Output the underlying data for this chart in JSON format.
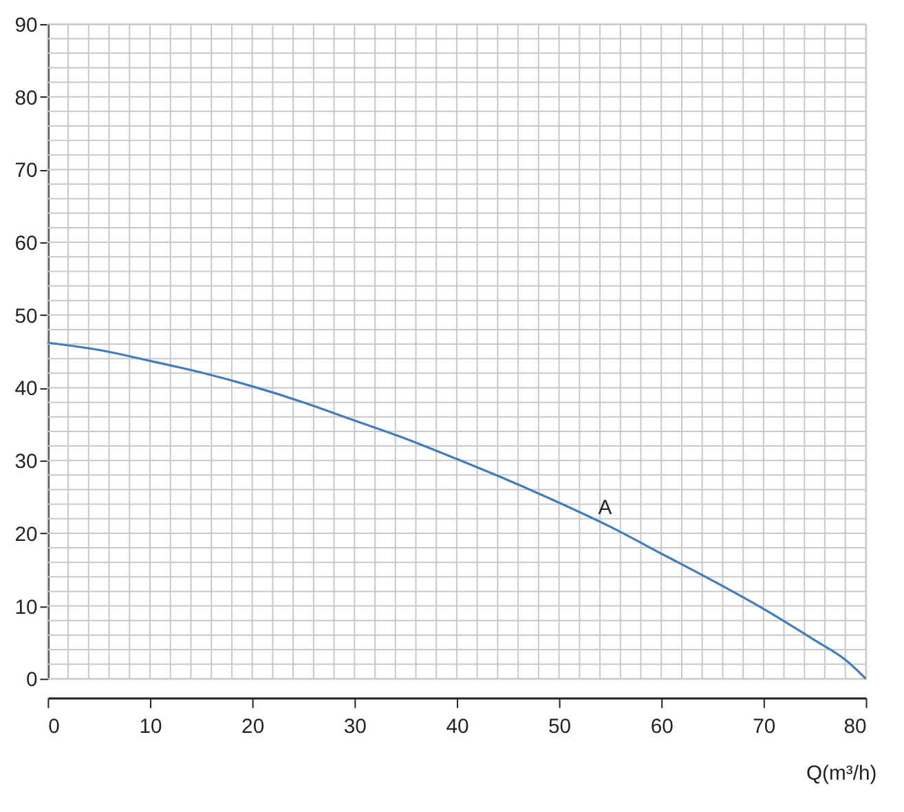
{
  "chart_data": {
    "type": "line",
    "xlabel": "Q(m³/h)",
    "x": [
      0,
      5,
      10,
      15,
      20,
      25,
      30,
      35,
      40,
      45,
      50,
      55,
      60,
      65,
      70,
      75,
      78,
      80
    ],
    "series": [
      {
        "color": "#3f7cc0",
        "values": [
          46.2,
          45.2,
          43.7,
          42.1,
          40.2,
          38.0,
          35.5,
          33.0,
          30.2,
          27.3,
          24.2,
          20.9,
          17.2,
          13.5,
          9.6,
          5.3,
          2.6,
          0
        ]
      }
    ],
    "annotations": [
      {
        "text": "A",
        "x": 54.5,
        "y": 21.3
      }
    ],
    "xlim": [
      0,
      80
    ],
    "ylim": [
      0,
      90
    ],
    "xticks": [
      0,
      {
        "value": 2,
        "label": null
      },
      {
        "value": 4,
        "label": null
      },
      {
        "value": 6,
        "label": null
      },
      {
        "value": 8,
        "label": null
      },
      10,
      {
        "value": 12,
        "label": null
      },
      {
        "value": 14,
        "label": null
      },
      {
        "value": 16,
        "label": null
      },
      {
        "value": 18,
        "label": null
      },
      20,
      {
        "value": 22,
        "label": null
      },
      {
        "value": 24,
        "label": null
      },
      {
        "value": 26,
        "label": null
      },
      {
        "value": 28,
        "label": null
      },
      30,
      {
        "value": 32,
        "label": null
      },
      {
        "value": 34,
        "label": null
      },
      {
        "value": 36,
        "label": null
      },
      {
        "value": 38,
        "label": null
      },
      40,
      {
        "value": 42,
        "label": null
      },
      {
        "value": 44,
        "label": null
      },
      {
        "value": 46,
        "label": null
      },
      {
        "value": 48,
        "label": null
      },
      50,
      {
        "value": 52,
        "label": null
      },
      {
        "value": 54,
        "label": null
      },
      {
        "value": 56,
        "label": null
      },
      {
        "value": 58,
        "label": null
      },
      60,
      {
        "value": 62,
        "label": null
      },
      {
        "value": 64,
        "label": null
      },
      {
        "value": 66,
        "label": null
      },
      {
        "value": 68,
        "label": null
      },
      70,
      {
        "value": 72,
        "label": null
      },
      {
        "value": 74,
        "label": null
      },
      {
        "value": 76,
        "label": null
      },
      {
        "value": 78,
        "label": null
      },
      80
    ],
    "yticks": [
      0,
      {
        "value": 2,
        "label": null
      },
      {
        "value": 4,
        "label": null
      },
      {
        "value": 6,
        "label": null
      },
      {
        "value": 8,
        "label": null
      },
      10,
      {
        "value": 12,
        "label": null
      },
      {
        "value": 14,
        "label": null
      },
      {
        "value": 16,
        "label": null
      },
      {
        "value": 18,
        "label": null
      },
      20,
      {
        "value": 22,
        "label": null
      },
      {
        "value": 24,
        "label": null
      },
      {
        "value": 26,
        "label": null
      },
      {
        "value": 28,
        "label": null
      },
      30,
      {
        "value": 32,
        "label": null
      },
      {
        "value": 34,
        "label": null
      },
      {
        "value": 36,
        "label": null
      },
      {
        "value": 38,
        "label": null
      },
      40,
      {
        "value": 42,
        "label": null
      },
      {
        "value": 44,
        "label": null
      },
      {
        "value": 46,
        "label": null
      },
      {
        "value": 48,
        "label": null
      },
      50,
      {
        "value": 52,
        "label": null
      },
      {
        "value": 54,
        "label": null
      },
      {
        "value": 56,
        "label": null
      },
      {
        "value": 58,
        "label": null
      },
      60,
      {
        "value": 62,
        "label": null
      },
      {
        "value": 64,
        "label": null
      },
      {
        "value": 66,
        "label": null
      },
      {
        "value": 68,
        "label": null
      },
      70,
      {
        "value": 72,
        "label": null
      },
      {
        "value": 74,
        "label": null
      },
      {
        "value": 76,
        "label": null
      },
      {
        "value": 78,
        "label": null
      },
      80,
      {
        "value": 82,
        "label": null
      },
      {
        "value": 84,
        "label": null
      },
      {
        "value": 86,
        "label": null
      },
      {
        "value": 88,
        "label": null
      },
      90
    ],
    "grid": true,
    "legend": false,
    "marker": "none",
    "line_style": "solid"
  }
}
